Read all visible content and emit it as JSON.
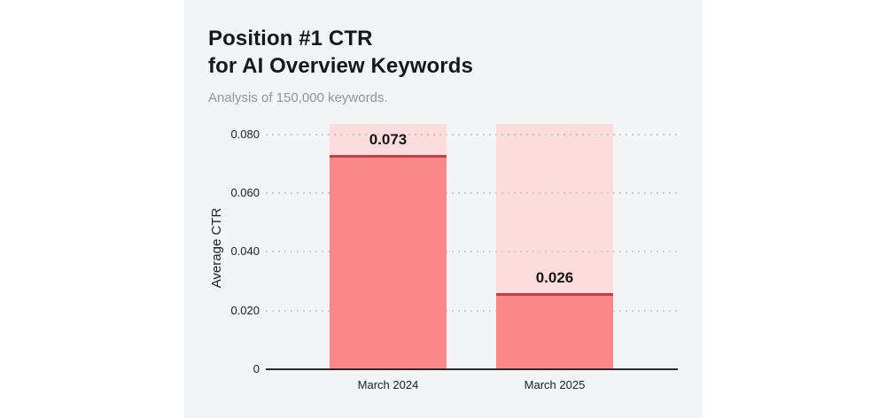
{
  "header": {
    "title_line1": "Position #1 CTR",
    "title_line2": "for AI Overview Keywords",
    "subtitle": "Analysis of 150,000 keywords."
  },
  "chart_data": {
    "type": "bar",
    "title": "Position #1 CTR for AI Overview Keywords",
    "subtitle": "Analysis of 150,000 keywords.",
    "categories": [
      "March 2024",
      "March 2025"
    ],
    "values": [
      0.073,
      0.026
    ],
    "value_labels": [
      "0.073",
      "0.026"
    ],
    "xlabel": "",
    "ylabel": "Average CTR",
    "ylim": [
      0,
      0.0835
    ],
    "yticks": [
      {
        "value": 0,
        "label": "0"
      },
      {
        "value": 0.02,
        "label": "0.020"
      },
      {
        "value": 0.04,
        "label": "0.040"
      },
      {
        "value": 0.06,
        "label": "0.060"
      },
      {
        "value": 0.08,
        "label": "0.080"
      }
    ],
    "grid": "horizontal-dotted",
    "legend": "none",
    "colors": {
      "bar": "#fb8888",
      "bar_background": "#fcdcdd",
      "bar_top_line": "#c43f48",
      "gridline": "#cdced2",
      "axis_line": "#2a2a2e",
      "card_background": "#f3f4f6",
      "page_background": "#ffffff",
      "title_text": "#17171c",
      "subtitle_text": "#94949c",
      "tick_text": "#212126",
      "value_text": "#141418"
    }
  }
}
